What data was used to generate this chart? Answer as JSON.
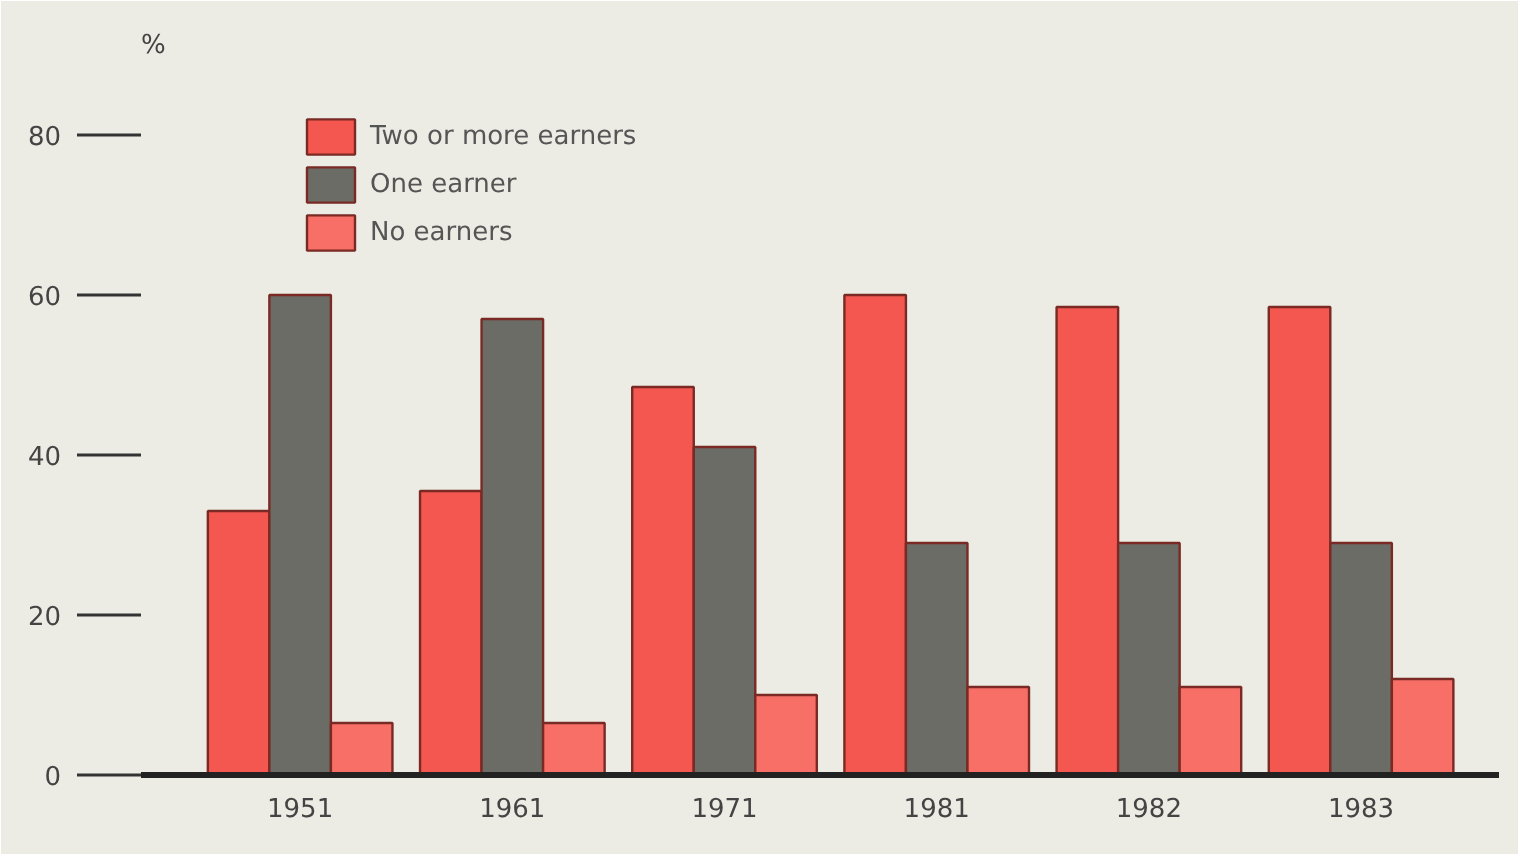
{
  "chart_data": {
    "type": "bar",
    "ylabel": "%",
    "categories": [
      "1951",
      "1961",
      "1971",
      "1981",
      "1982",
      "1983"
    ],
    "series": [
      {
        "name": "Two or more earners",
        "color": "#f4574f",
        "values": [
          33,
          35.5,
          48.5,
          60,
          58.5,
          58.5
        ]
      },
      {
        "name": "One earner",
        "color": "#6c6c66",
        "values": [
          60,
          57,
          41,
          29,
          29,
          29
        ]
      },
      {
        "name": "No earners",
        "color": "#f76f67",
        "values": [
          6.5,
          6.5,
          10,
          11,
          11,
          12
        ]
      }
    ],
    "ylim": [
      0,
      88
    ],
    "yticks": [
      0,
      20,
      40,
      60,
      80
    ],
    "grid": false,
    "legend": "top left"
  }
}
